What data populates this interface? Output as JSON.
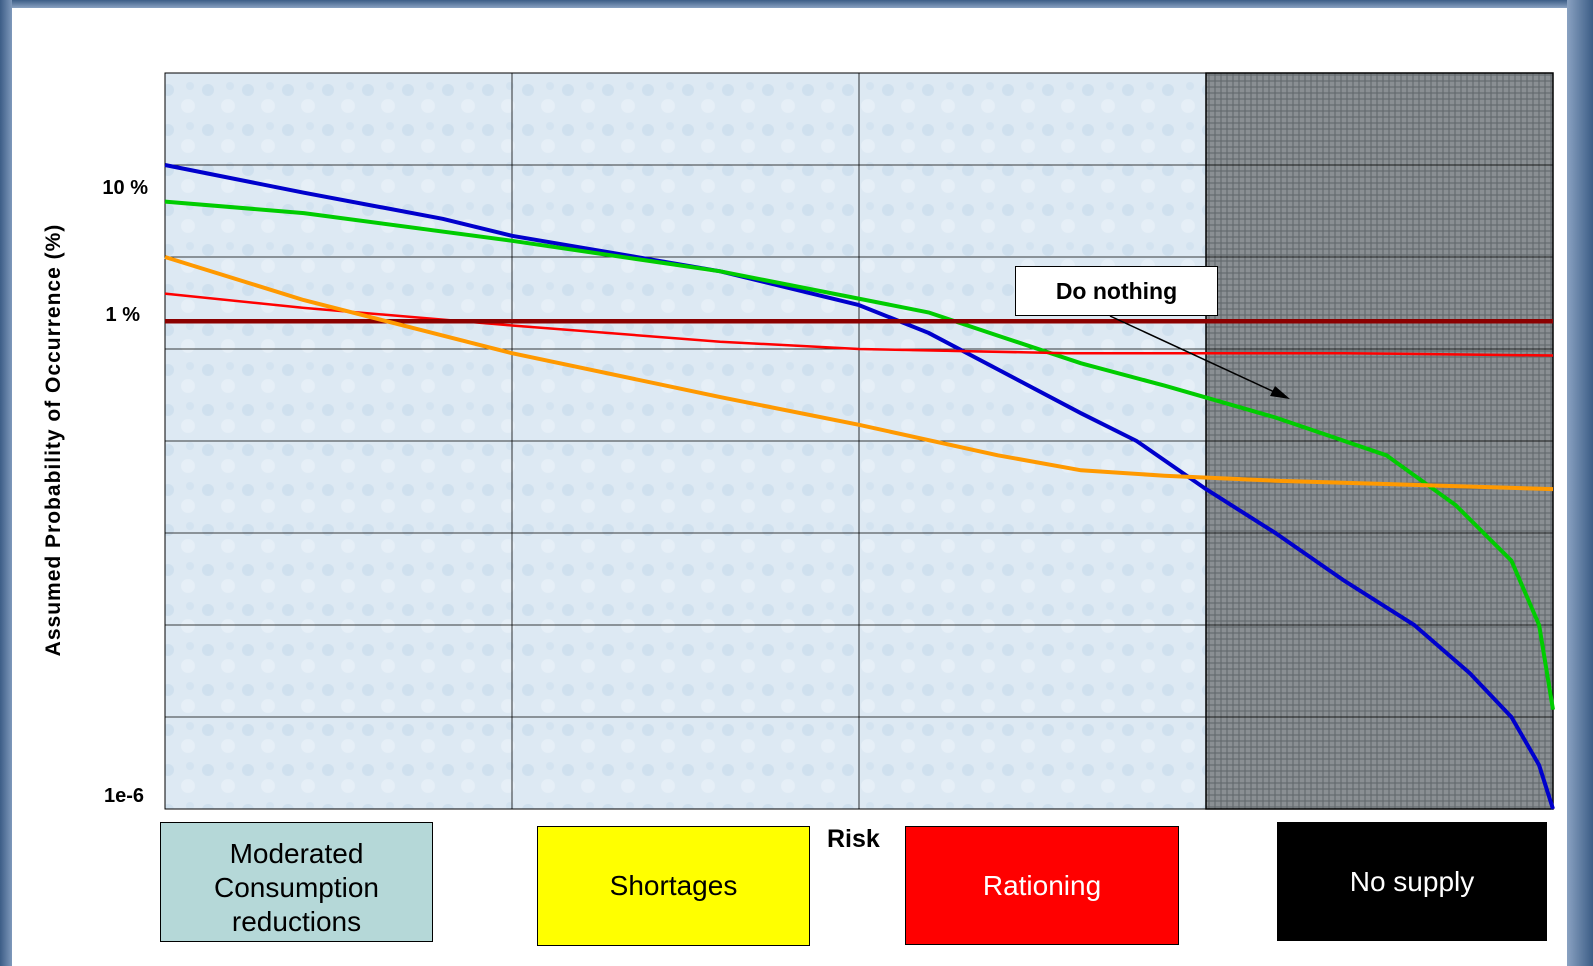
{
  "chart_data": {
    "type": "line",
    "title": "",
    "xlabel": "Risk",
    "ylabel": "Assumed Probability of Occurrence (%)",
    "yscale": "log",
    "ylim": [
      1e-06,
      100
    ],
    "y_tick_labels": [
      {
        "value": 10,
        "label": "10 %"
      },
      {
        "value": 1,
        "label": "1 %"
      },
      {
        "value": 1e-06,
        "label": "1e-6"
      }
    ],
    "xlim": [
      0,
      100
    ],
    "grid": true,
    "series": [
      {
        "color": "#0000cc",
        "points": [
          [
            0,
            10
          ],
          [
            10,
            5
          ],
          [
            20,
            2.6
          ],
          [
            25,
            1.7
          ],
          [
            40,
            0.7
          ],
          [
            50,
            0.3
          ],
          [
            55,
            0.15
          ],
          [
            60,
            0.06
          ],
          [
            66,
            0.02
          ],
          [
            70,
            0.01
          ],
          [
            75,
            0.003
          ],
          [
            80,
            0.001
          ],
          [
            85,
            0.0003
          ],
          [
            90,
            0.0001
          ],
          [
            94,
            3e-05
          ],
          [
            97,
            1e-05
          ],
          [
            99,
            3e-06
          ],
          [
            100,
            1e-06
          ]
        ]
      },
      {
        "color": "#00cc00",
        "points": [
          [
            0,
            4
          ],
          [
            10,
            3
          ],
          [
            25,
            1.5
          ],
          [
            40,
            0.7
          ],
          [
            55,
            0.25
          ],
          [
            60,
            0.14
          ],
          [
            66,
            0.07
          ],
          [
            72,
            0.04
          ],
          [
            80,
            0.018
          ],
          [
            88,
            0.007
          ],
          [
            93,
            0.002
          ],
          [
            97,
            0.0005
          ],
          [
            99,
            0.0001
          ],
          [
            100,
            1.2e-05
          ]
        ]
      },
      {
        "color": "#ff0000",
        "points": [
          [
            0,
            0.4
          ],
          [
            10,
            0.28
          ],
          [
            25,
            0.18
          ],
          [
            40,
            0.12
          ],
          [
            50,
            0.1
          ],
          [
            65,
            0.09
          ],
          [
            75,
            0.09
          ],
          [
            85,
            0.09
          ],
          [
            100,
            0.085
          ]
        ]
      },
      {
        "color": "#8b0000",
        "points": [
          [
            0,
            0.2
          ],
          [
            100,
            0.2
          ]
        ]
      },
      {
        "color": "#ff9900",
        "points": [
          [
            0,
            1
          ],
          [
            10,
            0.34
          ],
          [
            25,
            0.09
          ],
          [
            40,
            0.03
          ],
          [
            50,
            0.015
          ],
          [
            60,
            0.007
          ],
          [
            66,
            0.0048
          ],
          [
            72,
            0.0042
          ],
          [
            80,
            0.0037
          ],
          [
            100,
            0.003
          ]
        ]
      }
    ],
    "shaded_region": {
      "label": "No supply",
      "x_start": 75,
      "x_end": 100
    },
    "annotation": {
      "text": "Do nothing"
    }
  },
  "categories": {
    "moderated": "Moderated Consumption reductions",
    "shortages": "Shortages",
    "rationing": "Rationing",
    "no_supply": "No supply"
  },
  "colors": {
    "plot_background": "#dde9f3",
    "shaded_region": "#8a8f93"
  }
}
